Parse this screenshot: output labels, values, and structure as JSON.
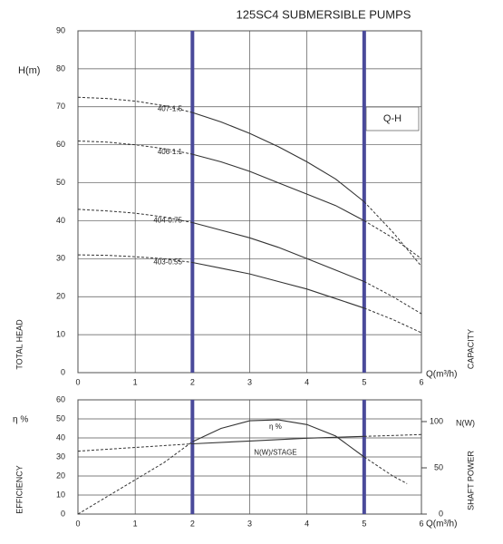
{
  "chart_data": [
    {
      "type": "line",
      "title": "125SC4 SUBMERSIBLE PUMPS",
      "y_label": "H(m)",
      "y_side_label": "TOTAL HEAD",
      "x_side_label": "CAPACITY",
      "x_label": "Q(m³/h)",
      "annotation": "Q-H",
      "xlim": [
        0,
        6
      ],
      "ylim": [
        0,
        90
      ],
      "xticks": [
        0,
        1,
        2,
        3,
        4,
        5,
        6
      ],
      "yticks": [
        0,
        10,
        20,
        30,
        40,
        50,
        60,
        70,
        80,
        90
      ],
      "highlight_x": [
        2,
        5
      ],
      "grid": true,
      "series": [
        {
          "name": "407-1.5",
          "color": "#333333",
          "x": [
            0,
            0.5,
            1,
            1.5,
            2,
            2.5,
            3,
            3.5,
            4,
            4.5,
            5,
            5.5,
            6
          ],
          "values": [
            72.5,
            72.2,
            71.5,
            70.3,
            68.5,
            66,
            63,
            59.5,
            55.5,
            51,
            45,
            37,
            28
          ]
        },
        {
          "name": "406-1.1",
          "color": "#333333",
          "x": [
            0,
            0.5,
            1,
            1.5,
            2,
            2.5,
            3,
            3.5,
            4,
            4.5,
            5,
            5.5,
            6
          ],
          "values": [
            61,
            60.7,
            60,
            59,
            57.5,
            55.5,
            53,
            50,
            47,
            44,
            40,
            35.5,
            30
          ]
        },
        {
          "name": "404-0.75",
          "color": "#333333",
          "x": [
            0,
            0.5,
            1,
            1.5,
            2,
            2.5,
            3,
            3.5,
            4,
            4.5,
            5,
            5.5,
            6
          ],
          "values": [
            43,
            42.6,
            42,
            41,
            39.5,
            37.5,
            35.5,
            33,
            30,
            27,
            24,
            20,
            15.5
          ]
        },
        {
          "name": "403-0.55",
          "color": "#333333",
          "x": [
            0,
            0.5,
            1,
            1.5,
            2,
            2.5,
            3,
            3.5,
            4,
            4.5,
            5,
            5.5,
            6
          ],
          "values": [
            31,
            30.9,
            30.5,
            30,
            29,
            27.5,
            26,
            24,
            22,
            19.5,
            17,
            14,
            10.5
          ]
        }
      ]
    },
    {
      "type": "line",
      "y_label": "η %",
      "y_side_label": "EFFICIENCY",
      "y2_label": "N(W)",
      "y2_side_label": "SHAFT POWER",
      "x_label": "Q(m³/h)",
      "xlim": [
        0,
        6
      ],
      "ylim": [
        0,
        60
      ],
      "y2lim": [
        0,
        123.5
      ],
      "xticks": [
        0,
        1,
        2,
        3,
        4,
        5,
        6
      ],
      "yticks": [
        0,
        10,
        20,
        30,
        40,
        50,
        60
      ],
      "y2ticks": [
        0,
        50,
        100
      ],
      "highlight_x": [
        2,
        5
      ],
      "grid": true,
      "series": [
        {
          "name": "η %",
          "color": "#333333",
          "x": [
            0,
            0.5,
            1,
            1.5,
            2,
            2.5,
            3,
            3.5,
            4,
            4.5,
            5,
            5.5,
            5.75
          ],
          "values": [
            0,
            9,
            18,
            27,
            38,
            45,
            49,
            49.5,
            47,
            41,
            30,
            20,
            16
          ]
        },
        {
          "name": "N(W)/STAGE",
          "color": "#333333",
          "axis": "y2",
          "x": [
            0,
            1,
            2,
            3,
            4,
            5,
            6
          ],
          "values": [
            68,
            72,
            76,
            79,
            82,
            84,
            86
          ]
        }
      ]
    }
  ]
}
